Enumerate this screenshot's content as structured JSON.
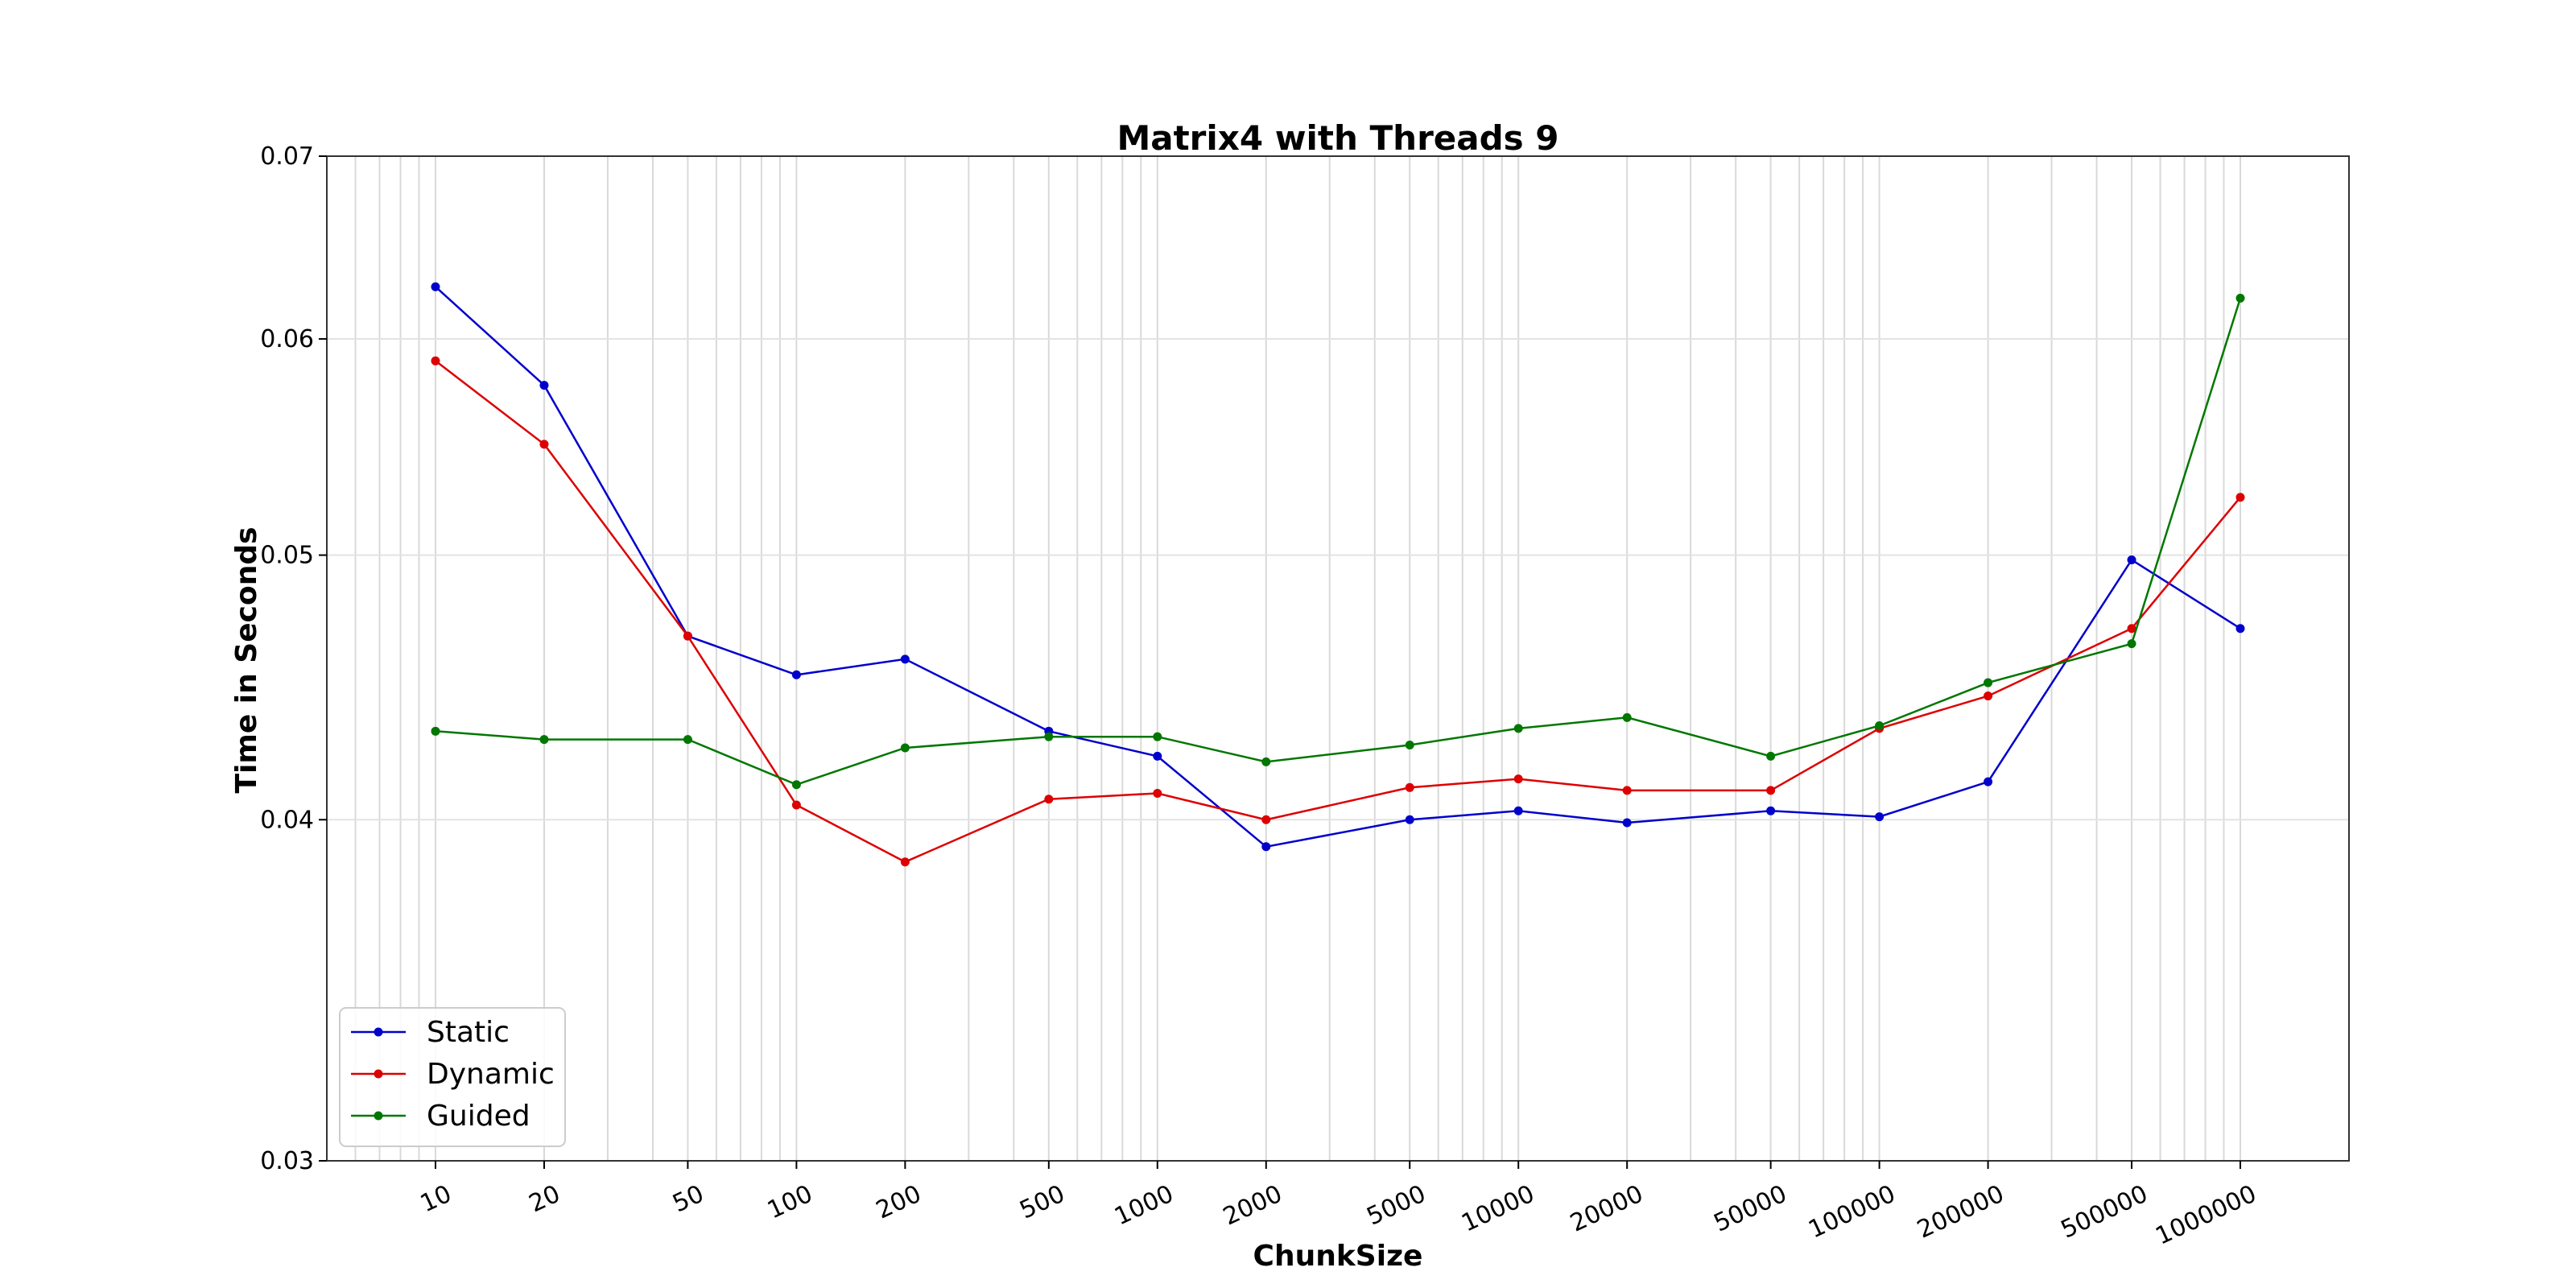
{
  "chart_data": {
    "type": "line",
    "title": "Matrix4 with Threads 9",
    "xlabel": "ChunkSize",
    "ylabel": "Time in Seconds",
    "x_scale": "log",
    "y_scale": "log",
    "xlim": [
      5,
      2000000
    ],
    "ylim": [
      0.03,
      0.07
    ],
    "x": [
      10,
      20,
      50,
      100,
      200,
      500,
      1000,
      2000,
      5000,
      10000,
      20000,
      50000,
      100000,
      200000,
      500000,
      1000000
    ],
    "x_tick_labels": [
      "10",
      "20",
      "50",
      "100",
      "200",
      "500",
      "1000",
      "2000",
      "5000",
      "10000",
      "20000",
      "50000",
      "100000",
      "200000",
      "500000",
      "1000000"
    ],
    "y_ticks": [
      0.03,
      0.04,
      0.05,
      0.06,
      0.07
    ],
    "y_tick_labels": [
      "0.03",
      "0.04",
      "0.05",
      "0.06",
      "0.07"
    ],
    "grid": true,
    "legend_position": "lower-left",
    "series": [
      {
        "name": "Static",
        "color": "#0000cc",
        "values": [
          0.0627,
          0.0577,
          0.0467,
          0.0452,
          0.0458,
          0.0431,
          0.0422,
          0.0391,
          0.04,
          0.0403,
          0.0399,
          0.0403,
          0.0401,
          0.0413,
          0.0498,
          0.047
        ]
      },
      {
        "name": "Dynamic",
        "color": "#dd0000",
        "values": [
          0.0589,
          0.0549,
          0.0467,
          0.0405,
          0.0386,
          0.0407,
          0.0409,
          0.04,
          0.0411,
          0.0414,
          0.041,
          0.041,
          0.0432,
          0.0444,
          0.047,
          0.0525
        ]
      },
      {
        "name": "Guided",
        "color": "#007700",
        "values": [
          0.0431,
          0.0428,
          0.0428,
          0.0412,
          0.0425,
          0.0429,
          0.0429,
          0.042,
          0.0426,
          0.0432,
          0.0436,
          0.0422,
          0.0433,
          0.0449,
          0.0464,
          0.0621
        ]
      }
    ]
  }
}
